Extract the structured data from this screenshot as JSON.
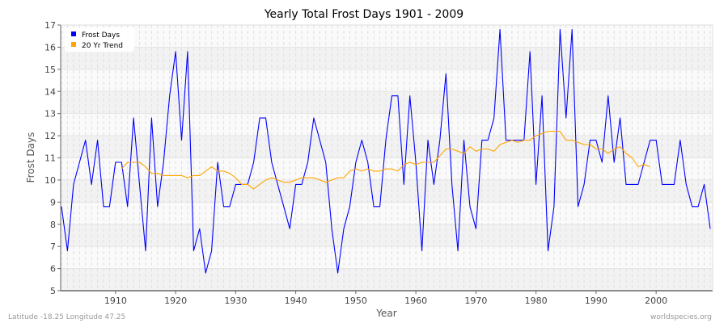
{
  "chart_data": {
    "type": "line",
    "title": "Yearly Total Frost Days 1901 - 2009",
    "xlabel": "Year",
    "ylabel": "Frost Days",
    "xlim": [
      1901,
      2009
    ],
    "ylim": [
      5,
      17
    ],
    "x_ticks": [
      1910,
      1920,
      1930,
      1940,
      1950,
      1960,
      1970,
      1980,
      1990,
      2000
    ],
    "y_ticks": [
      5,
      6,
      7,
      8,
      9,
      10,
      11,
      12,
      13,
      14,
      15,
      16,
      17
    ],
    "grid": true,
    "legend_position": "top-left",
    "series": [
      {
        "name": "Frost Days",
        "color": "#0000ff",
        "x_start": 1901,
        "values": [
          8.8,
          6.8,
          9.8,
          10.8,
          11.8,
          9.8,
          11.8,
          8.8,
          8.8,
          10.8,
          10.8,
          8.8,
          12.8,
          9.8,
          6.8,
          12.8,
          8.8,
          10.8,
          13.8,
          15.8,
          11.8,
          15.8,
          6.8,
          7.8,
          5.8,
          6.8,
          10.8,
          8.8,
          8.8,
          9.8,
          9.8,
          9.8,
          10.8,
          12.8,
          12.8,
          10.8,
          9.8,
          8.8,
          7.8,
          9.8,
          9.8,
          10.8,
          12.8,
          11.8,
          10.8,
          7.8,
          5.8,
          7.8,
          8.8,
          10.8,
          11.8,
          10.8,
          8.8,
          8.8,
          11.8,
          13.8,
          13.8,
          9.8,
          13.8,
          10.8,
          6.8,
          11.8,
          9.8,
          11.8,
          14.8,
          9.8,
          6.8,
          11.8,
          8.8,
          7.8,
          11.8,
          11.8,
          12.8,
          16.8,
          11.8,
          11.8,
          11.8,
          11.8,
          15.8,
          9.8,
          13.8,
          6.8,
          8.8,
          16.8,
          12.8,
          16.8,
          8.8,
          9.8,
          11.8,
          11.8,
          10.8,
          13.8,
          10.8,
          12.8,
          9.8,
          9.8,
          9.8,
          10.8,
          11.8,
          11.8,
          9.8,
          9.8,
          9.8,
          11.8,
          9.8,
          8.8,
          8.8,
          9.8,
          7.8
        ]
      },
      {
        "name": "20 Yr Trend",
        "color": "#ffa500",
        "x_start": 1911,
        "values": [
          10.5,
          10.8,
          10.8,
          10.8,
          10.6,
          10.3,
          10.3,
          10.2,
          10.2,
          10.2,
          10.2,
          10.1,
          10.2,
          10.2,
          10.4,
          10.6,
          10.4,
          10.4,
          10.3,
          10.1,
          9.8,
          9.8,
          9.6,
          9.8,
          10.0,
          10.1,
          10.0,
          9.9,
          9.9,
          10.0,
          10.1,
          10.1,
          10.1,
          10.0,
          9.9,
          10.0,
          10.1,
          10.1,
          10.4,
          10.5,
          10.4,
          10.5,
          10.4,
          10.4,
          10.5,
          10.5,
          10.4,
          10.7,
          10.8,
          10.7,
          10.8,
          10.8,
          10.8,
          11.1,
          11.4,
          11.4,
          11.3,
          11.2,
          11.5,
          11.3,
          11.4,
          11.4,
          11.3,
          11.6,
          11.7,
          11.8,
          11.7,
          11.8,
          11.8,
          12.0,
          12.1,
          12.2,
          12.2,
          12.2,
          11.8,
          11.8,
          11.7,
          11.6,
          11.6,
          11.4,
          11.4,
          11.2,
          11.4,
          11.5,
          11.2,
          11.0,
          10.6,
          10.7,
          10.6
        ]
      }
    ]
  },
  "footer": {
    "location": "Latitude -18.25 Longitude 47.25",
    "source": "worldspecies.org"
  }
}
